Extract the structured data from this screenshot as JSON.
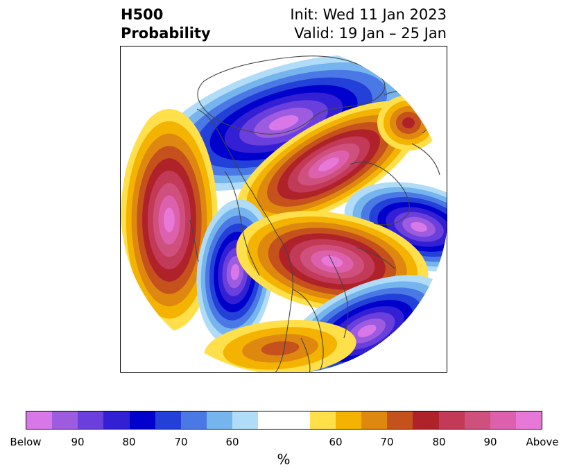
{
  "header": {
    "title_line1": "H500",
    "title_line2": "Probability",
    "init_text": "Init: Wed 11 Jan 2023",
    "valid_text": "Valid: 19 Jan – 25 Jan"
  },
  "colorbar": {
    "colors": [
      "#d877e8",
      "#9d5ce0",
      "#6a3fdc",
      "#3420d4",
      "#0000cc",
      "#2340d8",
      "#4a78e4",
      "#76b4ee",
      "#b0dcf8",
      "#ffffff",
      "#ffffff",
      "#ffdf4a",
      "#f3b300",
      "#de8810",
      "#c5511c",
      "#b0222a",
      "#c23a58",
      "#cf4f7d",
      "#dd60ac",
      "#e878d8"
    ],
    "tick_labels": [
      "Below",
      "90",
      "80",
      "70",
      "60",
      "60",
      "70",
      "80",
      "90",
      "Above"
    ],
    "unit": "%"
  },
  "map": {
    "below_color_scale": [
      "#b0dcf8",
      "#76b4ee",
      "#4a78e4",
      "#2340d8",
      "#0000cc",
      "#3420d4",
      "#6a3fdc",
      "#9d5ce0",
      "#d877e8"
    ],
    "above_color_scale": [
      "#ffdf4a",
      "#f3b300",
      "#de8810",
      "#c5511c",
      "#b0222a",
      "#c23a58",
      "#cf4f7d",
      "#dd60ac",
      "#e878d8"
    ],
    "coastline_color": "#444444"
  }
}
